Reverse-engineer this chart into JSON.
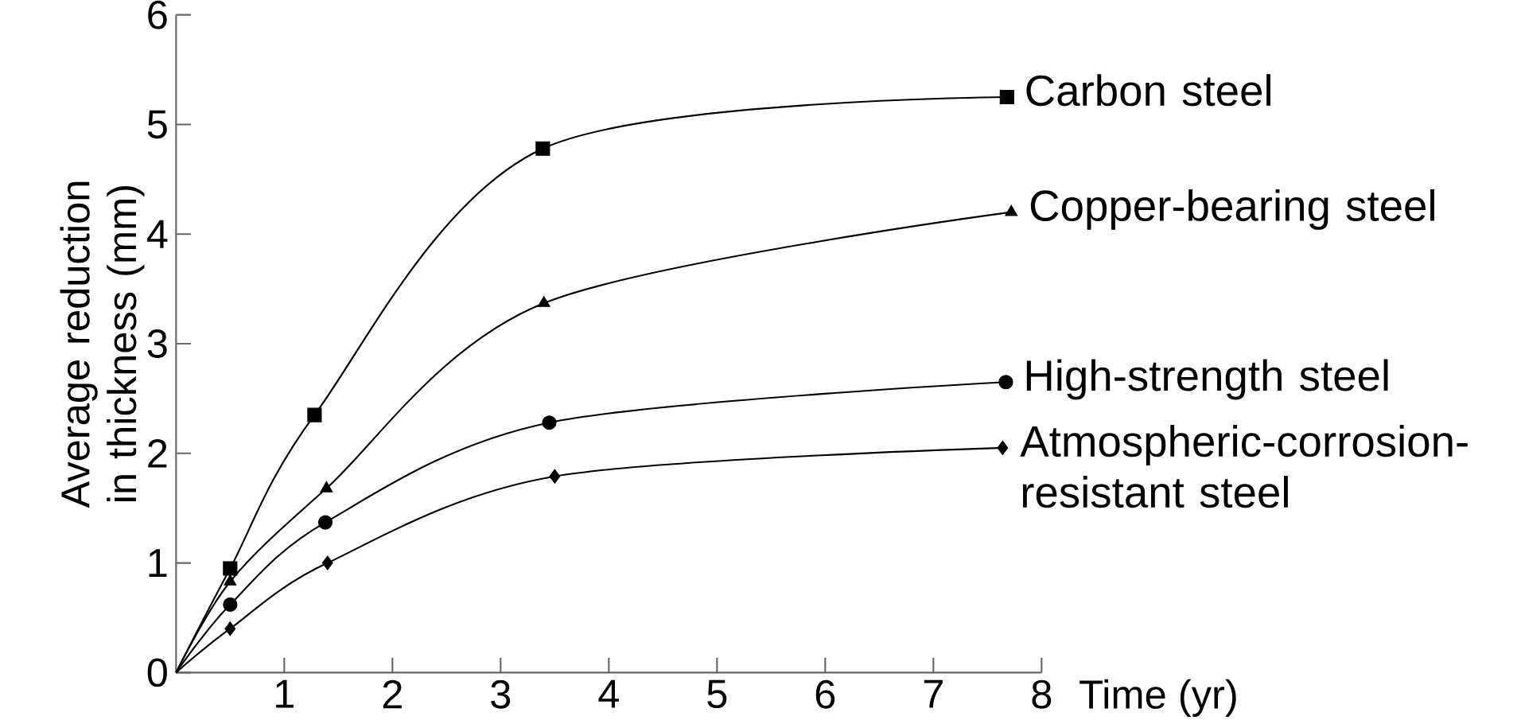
{
  "chart_data": {
    "type": "line",
    "xlabel": "Time (yr)",
    "ylabel": "Average reduction in thickness (mm)",
    "xlim": [
      0,
      8
    ],
    "ylim": [
      0,
      6
    ],
    "xticks": [
      1,
      2,
      3,
      4,
      5,
      6,
      7,
      8
    ],
    "yticks": [
      0,
      1,
      2,
      3,
      4,
      5,
      6
    ],
    "series": [
      {
        "color": "#000000",
        "marker": "none",
        "x": [
          0,
          0.5,
          1.28,
          3.39,
          7.68
        ],
        "values": [
          0,
          0.95,
          2.35,
          4.78,
          5.25
        ]
      },
      {
        "color": "#000000",
        "marker": "none",
        "x": [
          0,
          0.5,
          1.39,
          3.4,
          7.72
        ],
        "values": [
          0,
          0.83,
          1.68,
          3.37,
          4.2
        ]
      },
      {
        "color": "#000000",
        "marker": "none",
        "x": [
          0,
          0.5,
          1.38,
          3.45,
          7.67
        ],
        "values": [
          0,
          0.62,
          1.37,
          2.28,
          2.65
        ]
      },
      {
        "color": "#000000",
        "marker": "none",
        "x": [
          0,
          0.5,
          1.4,
          3.5,
          7.64
        ],
        "values": [
          0,
          0.4,
          1.0,
          1.79,
          2.05
        ]
      },
      {
        "type": "scatter",
        "name": "Carbon steel",
        "color": "#000000",
        "marker": "square",
        "x": [
          0.5,
          1.28,
          3.39,
          7.68
        ],
        "values": [
          0.95,
          2.35,
          4.78,
          5.25
        ]
      },
      {
        "type": "scatter",
        "name": "Copper-bearing steel",
        "color": "#000000",
        "marker": "triangle",
        "x": [
          0.5,
          1.39,
          3.4,
          7.72
        ],
        "values": [
          0.83,
          1.68,
          3.37,
          4.2
        ]
      },
      {
        "type": "scatter",
        "name": "High-strength steel",
        "color": "#000000",
        "marker": "circle",
        "x": [
          0.5,
          1.38,
          3.45,
          7.67
        ],
        "values": [
          0.62,
          1.37,
          2.28,
          2.65
        ]
      },
      {
        "type": "scatter",
        "name": "Atmospheric-corrosion-resistant steel",
        "color": "#000000",
        "marker": "diamond",
        "x": [
          0.5,
          1.4,
          3.5,
          7.64
        ],
        "values": [
          0.4,
          1.0,
          1.79,
          2.05
        ]
      }
    ]
  }
}
